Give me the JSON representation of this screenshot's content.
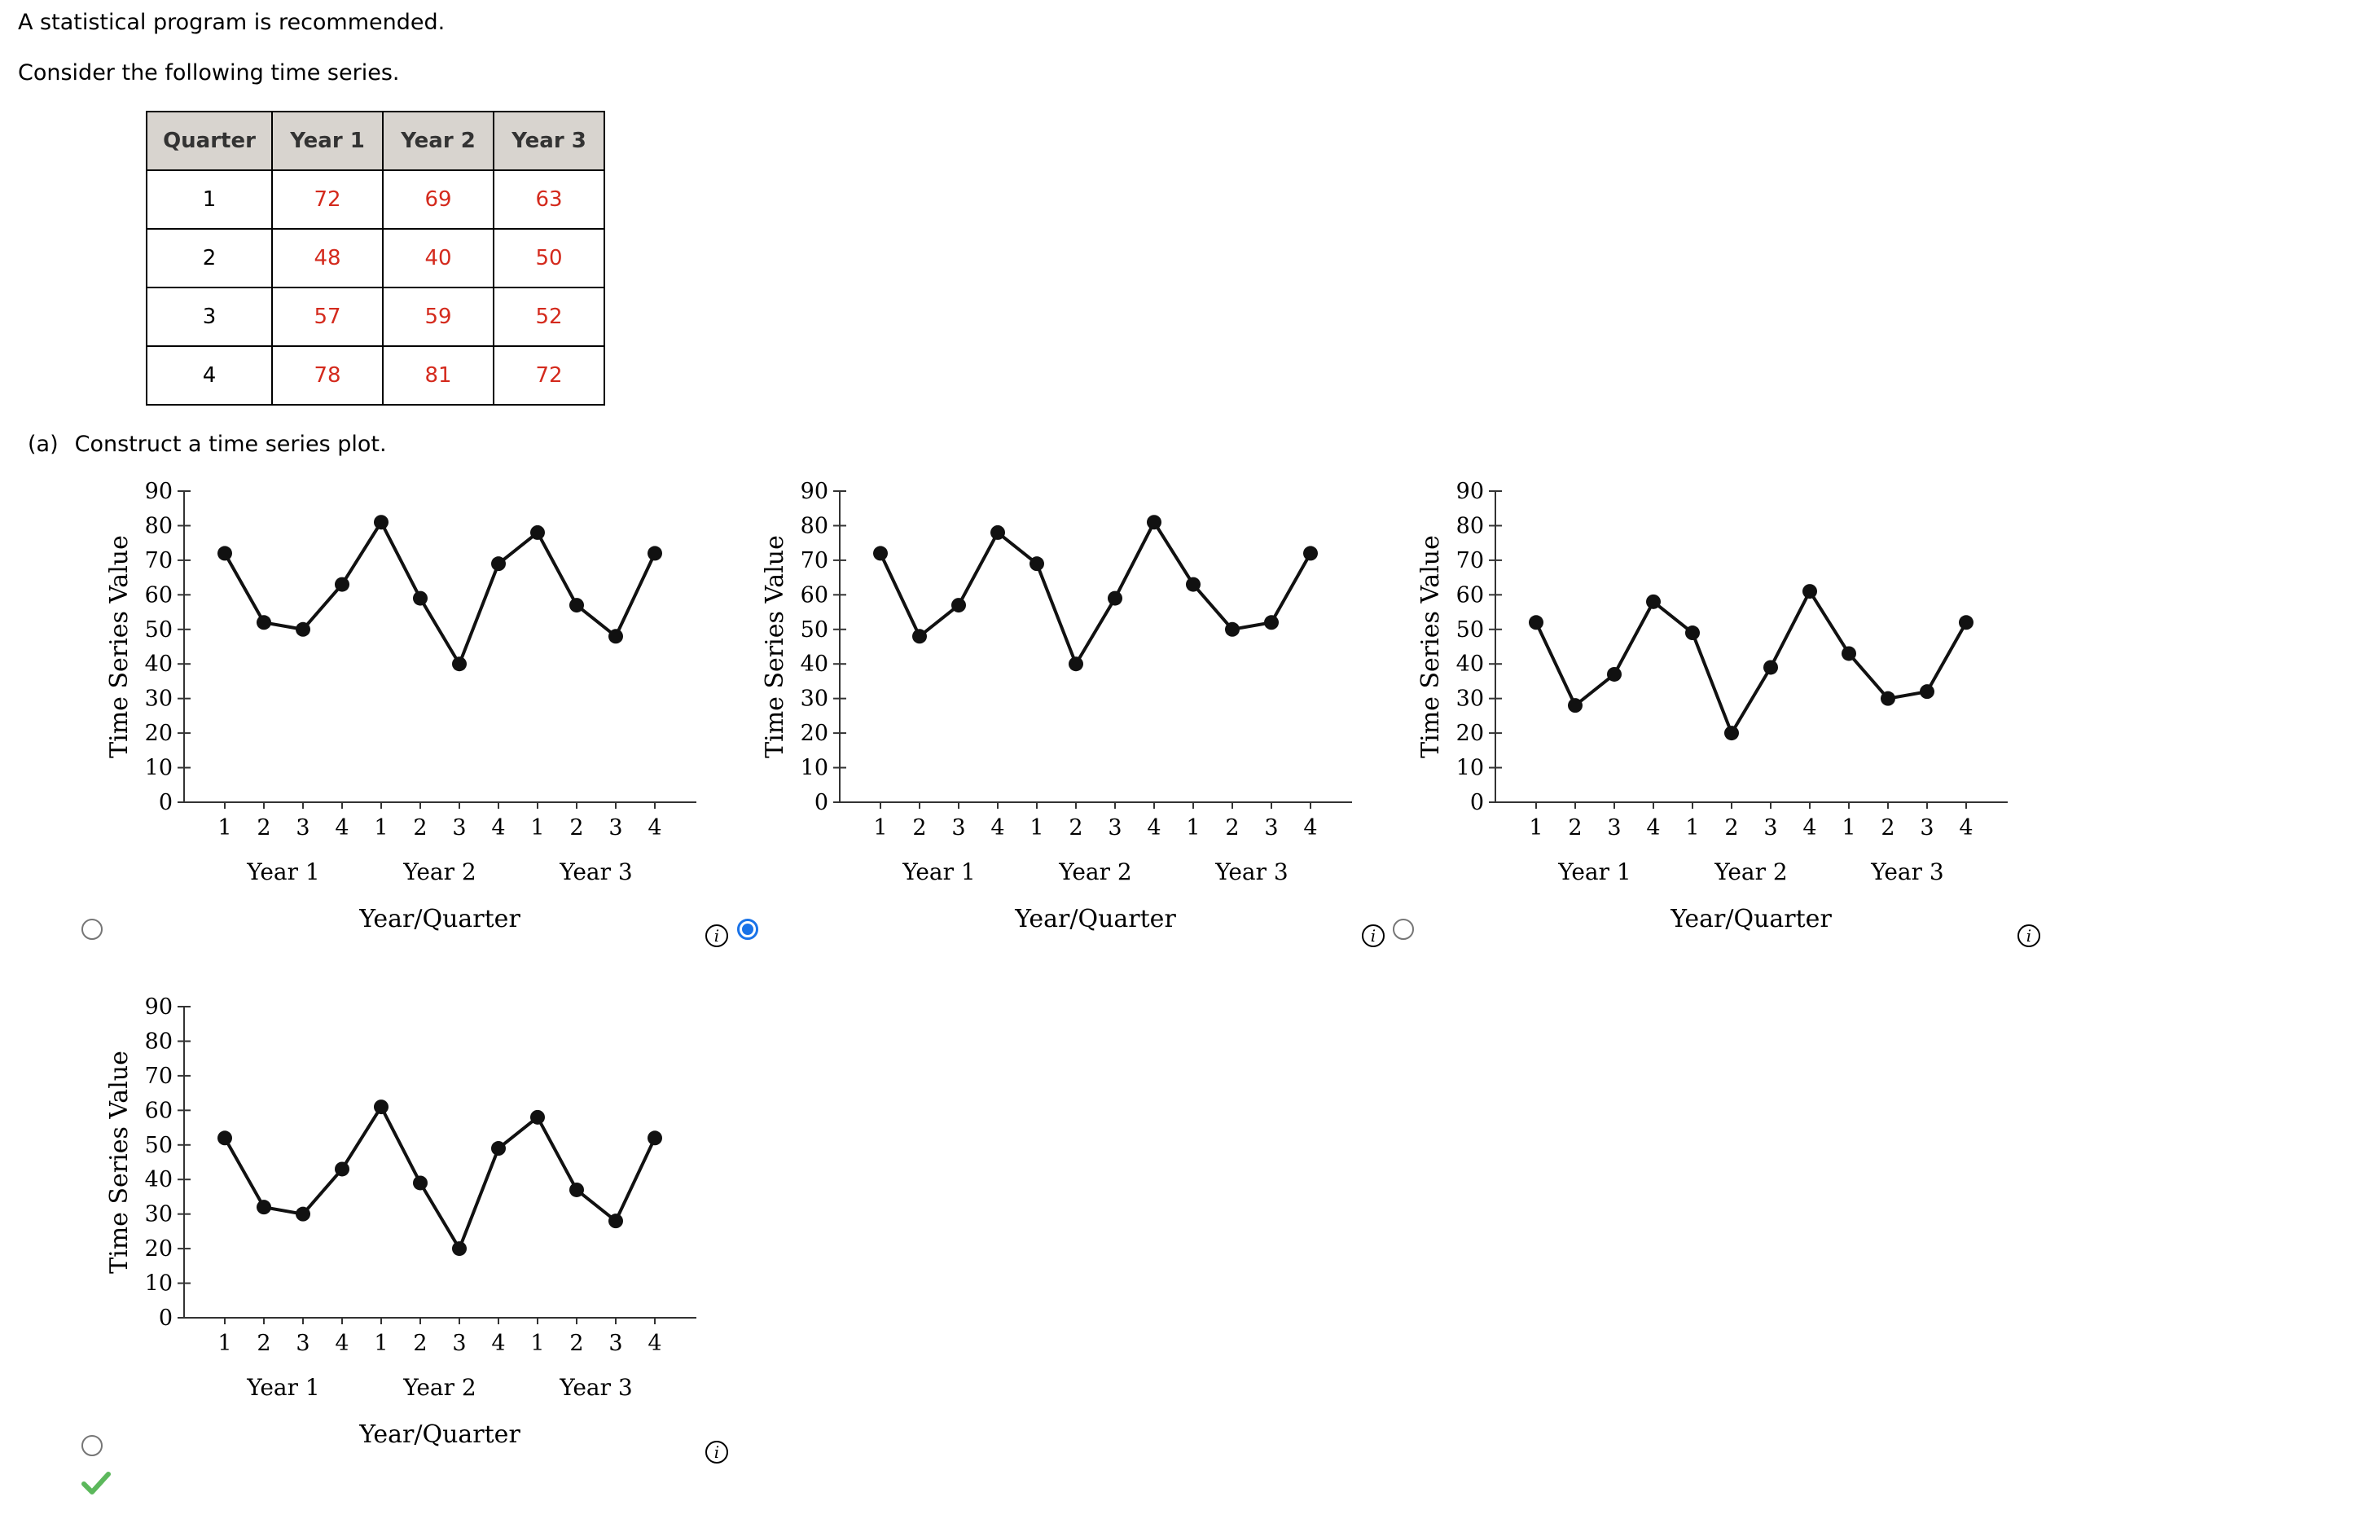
{
  "intro": {
    "line1": "A statistical program is recommended.",
    "line2": "Consider the following time series."
  },
  "table": {
    "headers": [
      "Quarter",
      "Year 1",
      "Year 2",
      "Year 3"
    ],
    "rows": [
      [
        "1",
        "72",
        "69",
        "63"
      ],
      [
        "2",
        "48",
        "40",
        "50"
      ],
      [
        "3",
        "57",
        "59",
        "52"
      ],
      [
        "4",
        "78",
        "81",
        "72"
      ]
    ]
  },
  "part_a": {
    "tag": "(a)",
    "text": "Construct a time series plot."
  },
  "options": [
    {
      "selected": false,
      "correct": false
    },
    {
      "selected": true,
      "correct": false
    },
    {
      "selected": false,
      "correct": false
    },
    {
      "selected": false,
      "correct": true
    }
  ],
  "info_icon": "info-icon",
  "correct_icon": "checkmark-icon",
  "colors": {
    "line": "#111111",
    "value_text": "#d42a1d",
    "header_bg": "#d8d4cf",
    "radio_selected": "#1a73e8",
    "check": "#5cb85c"
  },
  "chart_data": [
    {
      "type": "line",
      "xlabel": "Year/Quarter",
      "ylabel": "Time Series Value",
      "ylim": [
        0,
        90
      ],
      "yticks": [
        0,
        10,
        20,
        30,
        40,
        50,
        60,
        70,
        80,
        90
      ],
      "quarter_labels": [
        "1",
        "2",
        "3",
        "4",
        "1",
        "2",
        "3",
        "4",
        "1",
        "2",
        "3",
        "4"
      ],
      "year_labels": [
        "Year 1",
        "Year 2",
        "Year 3"
      ],
      "values": [
        72,
        52,
        50,
        63,
        81,
        59,
        40,
        69,
        78,
        57,
        48,
        72
      ]
    },
    {
      "type": "line",
      "xlabel": "Year/Quarter",
      "ylabel": "Time Series Value",
      "ylim": [
        0,
        90
      ],
      "yticks": [
        0,
        10,
        20,
        30,
        40,
        50,
        60,
        70,
        80,
        90
      ],
      "quarter_labels": [
        "1",
        "2",
        "3",
        "4",
        "1",
        "2",
        "3",
        "4",
        "1",
        "2",
        "3",
        "4"
      ],
      "year_labels": [
        "Year 1",
        "Year 2",
        "Year 3"
      ],
      "values": [
        72,
        48,
        57,
        78,
        69,
        40,
        59,
        81,
        63,
        50,
        52,
        72
      ]
    },
    {
      "type": "line",
      "xlabel": "Year/Quarter",
      "ylabel": "Time Series Value",
      "ylim": [
        0,
        90
      ],
      "yticks": [
        0,
        10,
        20,
        30,
        40,
        50,
        60,
        70,
        80,
        90
      ],
      "quarter_labels": [
        "1",
        "2",
        "3",
        "4",
        "1",
        "2",
        "3",
        "4",
        "1",
        "2",
        "3",
        "4"
      ],
      "year_labels": [
        "Year 1",
        "Year 2",
        "Year 3"
      ],
      "values": [
        52,
        28,
        37,
        58,
        49,
        20,
        39,
        61,
        43,
        30,
        32,
        52
      ]
    },
    {
      "type": "line",
      "xlabel": "Year/Quarter",
      "ylabel": "Time Series Value",
      "ylim": [
        0,
        90
      ],
      "yticks": [
        0,
        10,
        20,
        30,
        40,
        50,
        60,
        70,
        80,
        90
      ],
      "quarter_labels": [
        "1",
        "2",
        "3",
        "4",
        "1",
        "2",
        "3",
        "4",
        "1",
        "2",
        "3",
        "4"
      ],
      "year_labels": [
        "Year 1",
        "Year 2",
        "Year 3"
      ],
      "values": [
        52,
        32,
        30,
        43,
        61,
        39,
        20,
        49,
        58,
        37,
        28,
        52
      ]
    }
  ]
}
